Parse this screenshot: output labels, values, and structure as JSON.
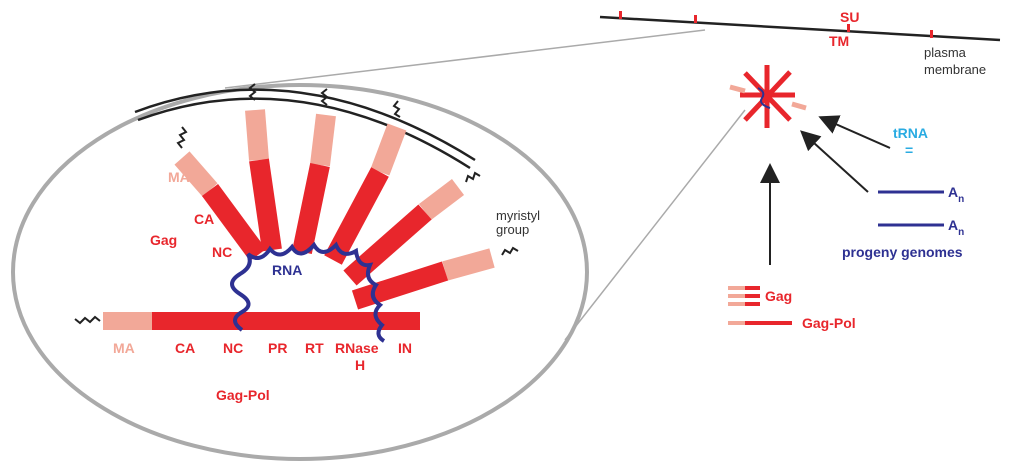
{
  "membrane": {
    "su": "SU",
    "tm": "TM",
    "label_lines": [
      "plasma",
      "membrane"
    ]
  },
  "trna": {
    "label": "tRNA",
    "symbol": "="
  },
  "genomes": {
    "items": [
      {
        "base": "A",
        "sub": "n"
      },
      {
        "base": "A",
        "sub": "n"
      }
    ],
    "label": "progeny genomes"
  },
  "precursors": {
    "gag": "Gag",
    "gag_pol": "Gag-Pol"
  },
  "inset": {
    "gag_domains": [
      "MA",
      "CA",
      "NC"
    ],
    "gag_label": "Gag",
    "rna": "RNA",
    "myristyl_lines": [
      "myristyl",
      "group"
    ],
    "gag_pol_domains": [
      "MA",
      "CA",
      "NC",
      "PR",
      "RT",
      "IN"
    ],
    "rnase_h_lines": [
      "RNase",
      "H"
    ],
    "gag_pol_label": "Gag-Pol"
  }
}
